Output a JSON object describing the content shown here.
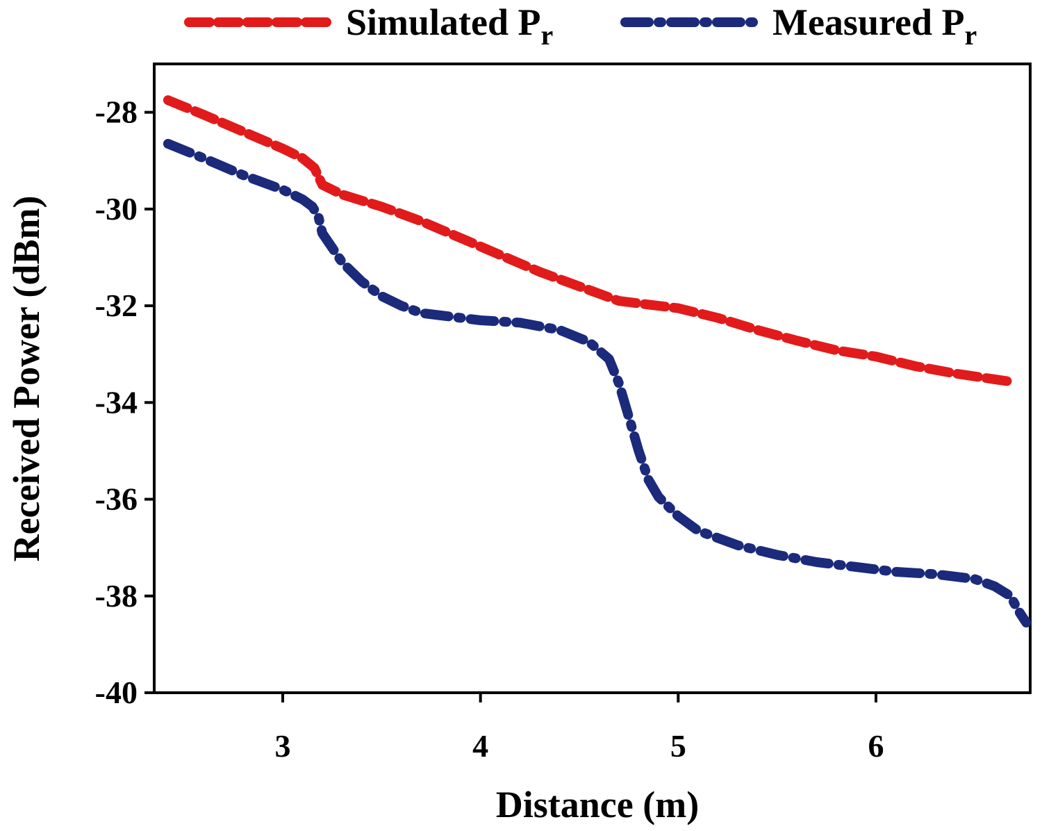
{
  "chart_data": {
    "type": "line",
    "title": "",
    "xlabel": "Distance (m)",
    "ylabel": "Received Power  (dBm)",
    "xlim": [
      2.35,
      6.78
    ],
    "ylim": [
      -40,
      -27
    ],
    "xticks": [
      3,
      4,
      5,
      6
    ],
    "yticks": [
      -28,
      -30,
      -32,
      -34,
      -36,
      -38,
      -40
    ],
    "xtick_labels": [
      "3",
      "4",
      "5",
      "6"
    ],
    "ytick_labels": [
      "-28",
      "-30",
      "-32",
      "-34",
      "-36",
      "-38",
      "-40"
    ],
    "grid": false,
    "legend_position": "top",
    "series": [
      {
        "name": "Simulated P",
        "name_sub": "r",
        "color": "#e11b1b",
        "style": "dashed",
        "x": [
          2.42,
          2.6,
          2.8,
          3.0,
          3.1,
          3.16,
          3.2,
          3.3,
          3.5,
          3.7,
          3.9,
          4.1,
          4.3,
          4.5,
          4.7,
          4.8,
          5.0,
          5.2,
          5.4,
          5.6,
          5.8,
          6.0,
          6.2,
          6.4,
          6.6,
          6.7
        ],
        "y": [
          -27.75,
          -28.05,
          -28.4,
          -28.75,
          -28.95,
          -29.15,
          -29.5,
          -29.7,
          -29.95,
          -30.25,
          -30.6,
          -30.95,
          -31.3,
          -31.6,
          -31.9,
          -31.95,
          -32.05,
          -32.25,
          -32.5,
          -32.72,
          -32.92,
          -33.05,
          -33.25,
          -33.4,
          -33.52,
          -33.58
        ]
      },
      {
        "name": "Measured P",
        "name_sub": "r",
        "color": "#1b2a7a",
        "style": "dashdot",
        "x": [
          2.42,
          2.6,
          2.8,
          3.0,
          3.1,
          3.15,
          3.18,
          3.2,
          3.25,
          3.3,
          3.4,
          3.5,
          3.6,
          3.7,
          3.8,
          4.0,
          4.2,
          4.4,
          4.55,
          4.65,
          4.7,
          4.75,
          4.8,
          4.85,
          4.9,
          5.0,
          5.1,
          5.3,
          5.5,
          5.7,
          5.9,
          6.1,
          6.3,
          6.5,
          6.6,
          6.68,
          6.72,
          6.76
        ],
        "y": [
          -28.65,
          -28.95,
          -29.3,
          -29.6,
          -29.8,
          -29.95,
          -30.15,
          -30.5,
          -30.8,
          -31.1,
          -31.5,
          -31.8,
          -32.0,
          -32.15,
          -32.2,
          -32.3,
          -32.35,
          -32.5,
          -32.75,
          -33.1,
          -33.6,
          -34.3,
          -35.0,
          -35.6,
          -35.95,
          -36.35,
          -36.65,
          -36.95,
          -37.15,
          -37.3,
          -37.4,
          -37.5,
          -37.55,
          -37.65,
          -37.8,
          -38.0,
          -38.3,
          -38.55
        ]
      }
    ]
  }
}
